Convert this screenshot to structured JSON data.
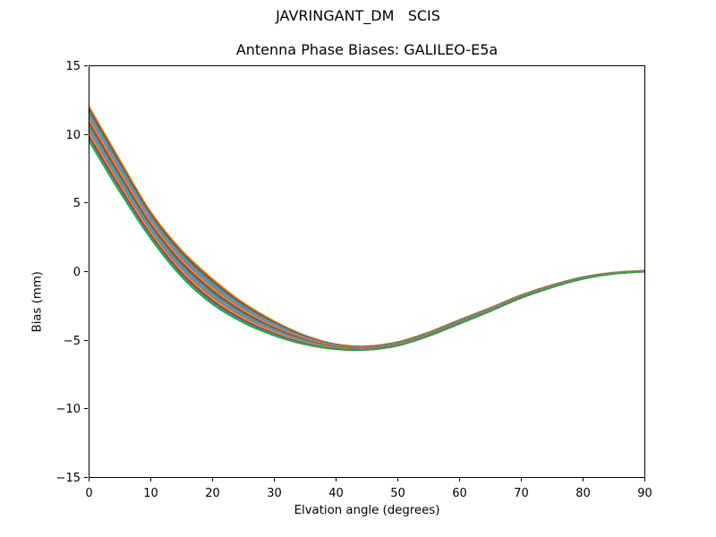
{
  "figure": {
    "background": "#ffffff",
    "text_color": "#000000"
  },
  "chart_data": {
    "type": "line",
    "suptitle": "JAVRINGANT_DM   SCIS",
    "title": "Antenna Phase Biases: GALILEO-E5a",
    "xlabel": "Elvation angle (degrees)",
    "ylabel": "Bias (mm)",
    "xlim": [
      0,
      90
    ],
    "ylim": [
      -15,
      15
    ],
    "x_ticks": [
      0,
      10,
      20,
      30,
      40,
      50,
      60,
      70,
      80,
      90
    ],
    "y_ticks": [
      -15,
      -10,
      -5,
      0,
      5,
      10,
      15
    ],
    "grid": false,
    "legend_position": "none",
    "description": "Fan of many overlapping per-satellite antenna phase bias curves; each series i has value mean[j] + f_i * half_spread[j], with f_i evenly spaced from 1 (top of band) to -1 (bottom of band).",
    "x": [
      0,
      5,
      10,
      15,
      20,
      25,
      30,
      35,
      40,
      45,
      50,
      55,
      60,
      65,
      70,
      75,
      80,
      85,
      90
    ],
    "mean": [
      10.8,
      7.0,
      3.4,
      0.6,
      -1.45,
      -3.0,
      -4.15,
      -5.0,
      -5.5,
      -5.6,
      -5.3,
      -4.6,
      -3.7,
      -2.8,
      -1.85,
      -1.1,
      -0.5,
      -0.15,
      0.0
    ],
    "half_spread": [
      1.3,
      1.2,
      1.0,
      1.0,
      0.95,
      0.75,
      0.55,
      0.35,
      0.2,
      0.15,
      0.15,
      0.15,
      0.16,
      0.14,
      0.12,
      0.1,
      0.08,
      0.06,
      0.05
    ],
    "n_series": 27,
    "band_at_0_deg": [
      9.5,
      12.1
    ],
    "minimum": {
      "x_range": [
        40,
        45
      ],
      "value": -5.6
    },
    "end_value_at_90_deg": 0.0,
    "colors": [
      "#bcbd22",
      "#ff7f0e",
      "#d62728",
      "#8c564b",
      "#1f77b4",
      "#17becf",
      "#2ca02c",
      "#e377c2",
      "#9467bd",
      "#7f7f7f"
    ],
    "line_width": 1.4,
    "axes_color": "#000000"
  }
}
